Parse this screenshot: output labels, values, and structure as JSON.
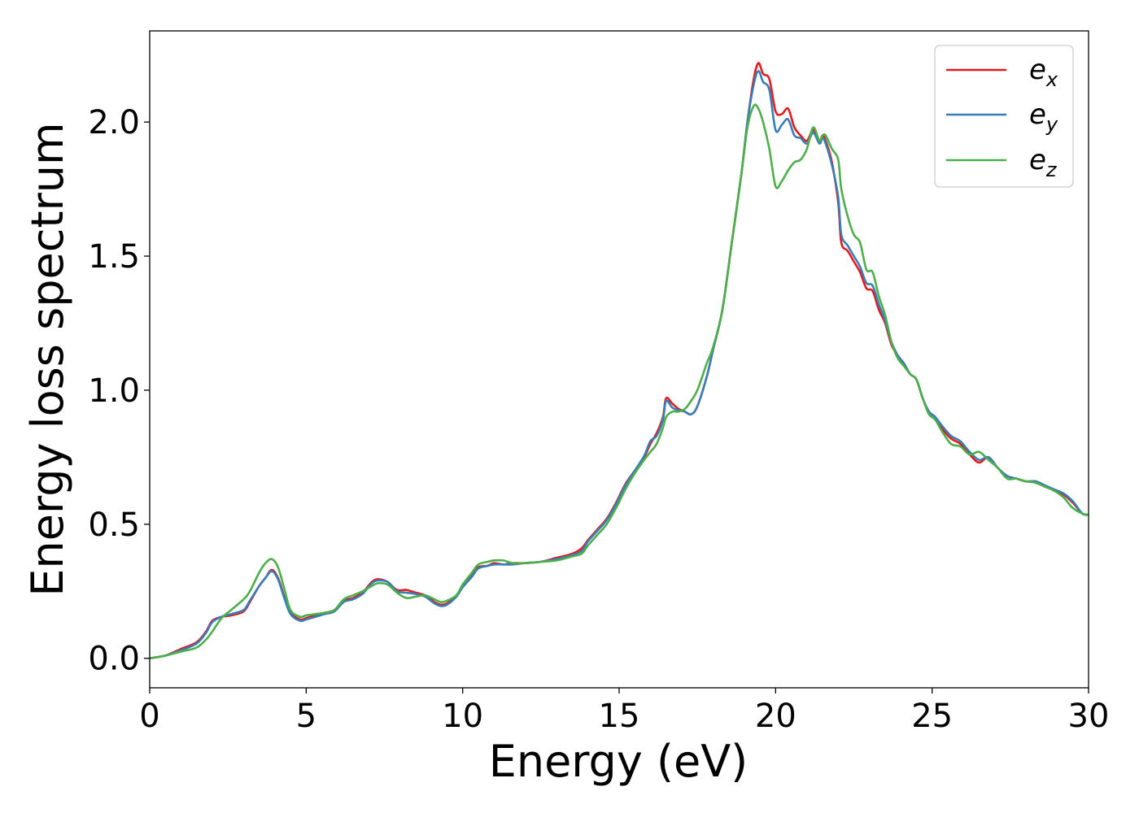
{
  "chart_data": {
    "type": "line",
    "xlabel": "Energy (eV)",
    "ylabel": "Energy loss spectrum",
    "xlim": [
      0,
      30
    ],
    "ylim": [
      -0.11,
      2.34
    ],
    "xticks": [
      0,
      5,
      10,
      15,
      20,
      25,
      30
    ],
    "yticks": [
      0.0,
      0.5,
      1.0,
      1.5,
      2.0
    ],
    "xtick_labels": [
      "0",
      "5",
      "10",
      "15",
      "20",
      "25",
      "30"
    ],
    "ytick_labels": [
      "0.0",
      "0.5",
      "1.0",
      "1.5",
      "2.0"
    ],
    "grid": false,
    "legend_position": "top-right",
    "series": [
      {
        "name": "e",
        "subscript": "x",
        "color": "#e41a1c",
        "x": [
          0,
          0.5,
          1,
          1.5,
          1.8,
          2,
          2.3,
          2.6,
          3,
          3.2,
          3.5,
          3.7,
          3.9,
          4.1,
          4.3,
          4.5,
          4.8,
          5,
          5.3,
          5.6,
          5.9,
          6.2,
          6.5,
          6.8,
          7.1,
          7.3,
          7.6,
          7.9,
          8.2,
          8.5,
          8.8,
          9.1,
          9.3,
          9.5,
          9.8,
          10,
          10.3,
          10.5,
          10.8,
          11,
          11.3,
          11.6,
          12,
          12.5,
          13,
          13.5,
          13.8,
          14,
          14.3,
          14.6,
          14.9,
          15.2,
          15.5,
          15.8,
          16,
          16.2,
          16.4,
          16.5,
          16.7,
          16.9,
          17.1,
          17.3,
          17.5,
          17.8,
          18,
          18.3,
          18.6,
          18.9,
          19.1,
          19.3,
          19.45,
          19.6,
          19.8,
          20,
          20.2,
          20.4,
          20.6,
          20.8,
          21,
          21.2,
          21.4,
          21.5,
          21.6,
          21.8,
          22,
          22.1,
          22.3,
          22.5,
          22.7,
          22.9,
          23.1,
          23.3,
          23.5,
          23.7,
          23.9,
          24.1,
          24.3,
          24.5,
          24.7,
          24.9,
          25.1,
          25.3,
          25.6,
          25.9,
          26.2,
          26.5,
          26.8,
          27.1,
          27.4,
          27.7,
          28,
          28.3,
          28.6,
          28.9,
          29.2,
          29.5,
          29.8,
          30
        ],
        "values": [
          0,
          0.01,
          0.035,
          0.06,
          0.1,
          0.14,
          0.155,
          0.16,
          0.175,
          0.21,
          0.27,
          0.3,
          0.33,
          0.3,
          0.23,
          0.17,
          0.145,
          0.15,
          0.16,
          0.17,
          0.18,
          0.215,
          0.225,
          0.245,
          0.285,
          0.295,
          0.285,
          0.255,
          0.255,
          0.245,
          0.235,
          0.21,
          0.2,
          0.205,
          0.235,
          0.27,
          0.31,
          0.34,
          0.345,
          0.355,
          0.35,
          0.355,
          0.355,
          0.36,
          0.375,
          0.39,
          0.41,
          0.44,
          0.48,
          0.52,
          0.58,
          0.65,
          0.7,
          0.75,
          0.8,
          0.84,
          0.9,
          0.97,
          0.95,
          0.93,
          0.92,
          0.91,
          0.94,
          1.05,
          1.15,
          1.3,
          1.55,
          1.8,
          2.0,
          2.16,
          2.22,
          2.18,
          2.16,
          2.04,
          2.03,
          2.05,
          1.98,
          1.95,
          1.93,
          1.97,
          1.93,
          1.95,
          1.93,
          1.85,
          1.7,
          1.55,
          1.52,
          1.48,
          1.44,
          1.38,
          1.37,
          1.3,
          1.25,
          1.17,
          1.13,
          1.1,
          1.06,
          1.04,
          0.97,
          0.92,
          0.9,
          0.86,
          0.82,
          0.8,
          0.76,
          0.73,
          0.75,
          0.71,
          0.68,
          0.67,
          0.66,
          0.66,
          0.645,
          0.625,
          0.61,
          0.58,
          0.54,
          0.535
        ]
      },
      {
        "name": "e",
        "subscript": "y",
        "color": "#377eb8",
        "x": [
          0,
          0.5,
          1,
          1.5,
          1.8,
          2,
          2.3,
          2.6,
          3,
          3.2,
          3.5,
          3.7,
          3.9,
          4.1,
          4.3,
          4.5,
          4.8,
          5,
          5.3,
          5.6,
          5.9,
          6.2,
          6.5,
          6.8,
          7.1,
          7.3,
          7.6,
          7.9,
          8.2,
          8.5,
          8.8,
          9.1,
          9.3,
          9.5,
          9.8,
          10,
          10.3,
          10.5,
          10.8,
          11,
          11.3,
          11.6,
          12,
          12.5,
          13,
          13.5,
          13.8,
          14,
          14.3,
          14.6,
          14.9,
          15.2,
          15.5,
          15.8,
          16,
          16.2,
          16.4,
          16.5,
          16.7,
          16.9,
          17.1,
          17.3,
          17.5,
          17.8,
          18,
          18.3,
          18.6,
          18.9,
          19.1,
          19.3,
          19.45,
          19.6,
          19.8,
          20,
          20.2,
          20.4,
          20.6,
          20.8,
          21,
          21.2,
          21.4,
          21.5,
          21.6,
          21.8,
          22,
          22.1,
          22.3,
          22.5,
          22.7,
          22.9,
          23.1,
          23.3,
          23.5,
          23.7,
          23.9,
          24.1,
          24.3,
          24.5,
          24.7,
          24.9,
          25.1,
          25.3,
          25.6,
          25.9,
          26.2,
          26.5,
          26.8,
          27.1,
          27.4,
          27.7,
          28,
          28.3,
          28.6,
          28.9,
          29.2,
          29.5,
          29.8,
          30
        ],
        "values": [
          0,
          0.01,
          0.03,
          0.055,
          0.095,
          0.135,
          0.155,
          0.165,
          0.18,
          0.215,
          0.27,
          0.3,
          0.325,
          0.295,
          0.225,
          0.165,
          0.14,
          0.145,
          0.155,
          0.165,
          0.175,
          0.21,
          0.22,
          0.24,
          0.28,
          0.29,
          0.285,
          0.25,
          0.245,
          0.24,
          0.23,
          0.205,
          0.195,
          0.2,
          0.23,
          0.265,
          0.305,
          0.335,
          0.345,
          0.35,
          0.35,
          0.35,
          0.355,
          0.36,
          0.37,
          0.385,
          0.4,
          0.435,
          0.475,
          0.515,
          0.575,
          0.645,
          0.7,
          0.755,
          0.81,
          0.83,
          0.89,
          0.96,
          0.935,
          0.925,
          0.92,
          0.91,
          0.94,
          1.05,
          1.15,
          1.3,
          1.55,
          1.8,
          2.0,
          2.14,
          2.19,
          2.15,
          2.12,
          1.97,
          1.99,
          2.01,
          1.95,
          1.94,
          1.92,
          1.96,
          1.92,
          1.94,
          1.92,
          1.84,
          1.72,
          1.58,
          1.54,
          1.5,
          1.46,
          1.4,
          1.39,
          1.32,
          1.26,
          1.18,
          1.13,
          1.1,
          1.06,
          1.04,
          0.97,
          0.92,
          0.9,
          0.87,
          0.83,
          0.81,
          0.77,
          0.74,
          0.75,
          0.71,
          0.68,
          0.67,
          0.66,
          0.66,
          0.645,
          0.63,
          0.615,
          0.585,
          0.54,
          0.535
        ]
      },
      {
        "name": "e",
        "subscript": "z",
        "color": "#4daf4a",
        "x": [
          0,
          0.5,
          1,
          1.5,
          1.8,
          2,
          2.3,
          2.6,
          3,
          3.2,
          3.5,
          3.7,
          3.9,
          4.1,
          4.3,
          4.5,
          4.8,
          5,
          5.3,
          5.6,
          5.9,
          6.2,
          6.5,
          6.8,
          7.1,
          7.3,
          7.6,
          7.9,
          8.2,
          8.5,
          8.8,
          9.1,
          9.3,
          9.5,
          9.8,
          10,
          10.3,
          10.5,
          10.8,
          11,
          11.3,
          11.6,
          12,
          12.5,
          13,
          13.5,
          13.8,
          14,
          14.3,
          14.6,
          14.9,
          15.2,
          15.5,
          15.8,
          16,
          16.2,
          16.4,
          16.5,
          16.7,
          16.9,
          17.1,
          17.3,
          17.5,
          17.8,
          18,
          18.3,
          18.6,
          18.9,
          19.1,
          19.3,
          19.45,
          19.6,
          19.8,
          20,
          20.2,
          20.4,
          20.6,
          20.8,
          21,
          21.2,
          21.4,
          21.5,
          21.6,
          21.8,
          22,
          22.1,
          22.3,
          22.5,
          22.7,
          22.9,
          23.1,
          23.3,
          23.5,
          23.7,
          23.9,
          24.1,
          24.3,
          24.5,
          24.7,
          24.9,
          25.1,
          25.3,
          25.6,
          25.9,
          26.2,
          26.5,
          26.8,
          27.1,
          27.4,
          27.7,
          28,
          28.3,
          28.6,
          28.9,
          29.2,
          29.5,
          29.8,
          30
        ],
        "values": [
          0,
          0.01,
          0.025,
          0.04,
          0.07,
          0.1,
          0.15,
          0.18,
          0.22,
          0.25,
          0.32,
          0.355,
          0.37,
          0.34,
          0.26,
          0.18,
          0.155,
          0.16,
          0.165,
          0.17,
          0.18,
          0.22,
          0.235,
          0.25,
          0.27,
          0.28,
          0.275,
          0.245,
          0.225,
          0.23,
          0.235,
          0.22,
          0.21,
          0.215,
          0.235,
          0.275,
          0.32,
          0.35,
          0.36,
          0.365,
          0.365,
          0.355,
          0.355,
          0.36,
          0.365,
          0.38,
          0.39,
          0.42,
          0.46,
          0.5,
          0.56,
          0.63,
          0.69,
          0.74,
          0.77,
          0.8,
          0.86,
          0.9,
          0.92,
          0.92,
          0.93,
          0.96,
          1.0,
          1.1,
          1.16,
          1.3,
          1.55,
          1.8,
          1.98,
          2.06,
          2.05,
          2.0,
          1.9,
          1.76,
          1.78,
          1.82,
          1.85,
          1.86,
          1.9,
          1.98,
          1.93,
          1.95,
          1.95,
          1.9,
          1.86,
          1.75,
          1.65,
          1.58,
          1.55,
          1.45,
          1.44,
          1.35,
          1.28,
          1.18,
          1.12,
          1.09,
          1.06,
          1.04,
          0.97,
          0.91,
          0.89,
          0.85,
          0.8,
          0.79,
          0.76,
          0.77,
          0.74,
          0.71,
          0.67,
          0.67,
          0.66,
          0.655,
          0.64,
          0.625,
          0.6,
          0.56,
          0.54,
          0.535
        ]
      }
    ]
  }
}
